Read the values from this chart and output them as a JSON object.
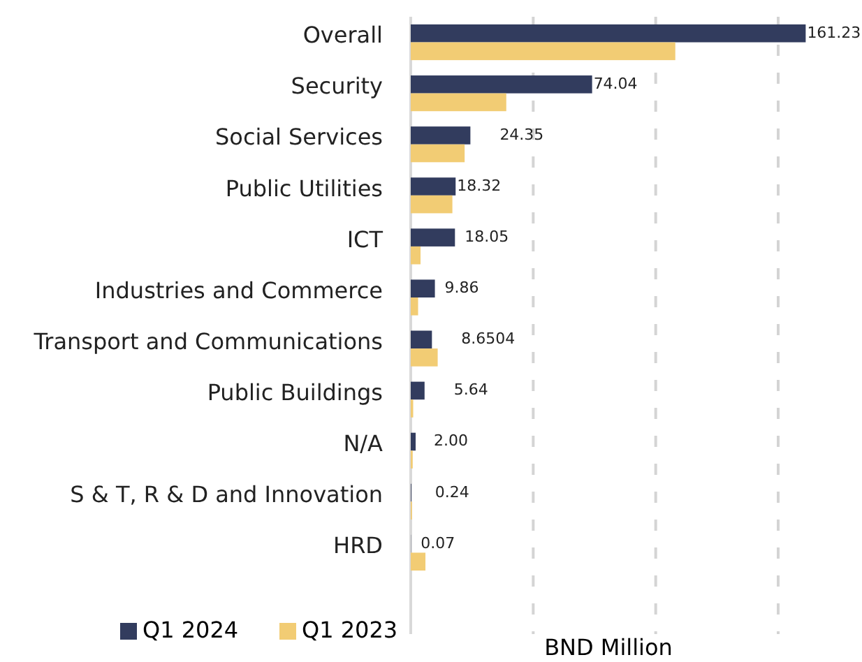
{
  "chart_data": {
    "type": "bar",
    "orientation": "horizontal",
    "categories": [
      "Overall",
      "Security",
      "Social Services",
      "Public Utilities",
      "ICT",
      "Industries and Commerce",
      "Transport and Communications",
      "Public Buildings",
      "N/A",
      "S & T, R & D and Innovation",
      "HRD"
    ],
    "series": [
      {
        "name": "Q1 2024",
        "color": "#323c5e",
        "values": [
          161.23,
          74.04,
          24.35,
          18.32,
          18.05,
          9.86,
          8.6504,
          5.64,
          2.0,
          0.24,
          0.07
        ],
        "value_labels": [
          "161.23",
          "74.04",
          "24.35",
          "18.32",
          "18.05",
          "9.86",
          "8.6504",
          "5.64",
          "2.00",
          "0.24",
          "0.07"
        ]
      },
      {
        "name": "Q1 2023",
        "color": "#f2cc74",
        "values": [
          108,
          39,
          22,
          17,
          4,
          3,
          11,
          1,
          0.8,
          0.5,
          6
        ]
      }
    ],
    "xlabel": "BND Million",
    "xticks": [
      {
        "value": 50,
        "label": null
      },
      {
        "value": 100,
        "label": null
      },
      {
        "value": 150,
        "label": null
      }
    ],
    "grid": "x",
    "tick_labels": "y",
    "legend": "bottom left"
  }
}
